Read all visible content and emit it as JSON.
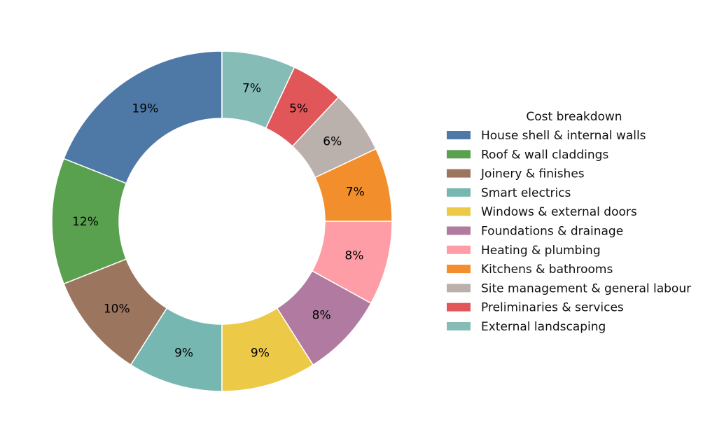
{
  "chart_data": {
    "type": "pie",
    "variant": "donut",
    "start_angle_deg": 90,
    "direction": "counterclockwise",
    "legend_title": "Cost breakdown",
    "legend_placement": "right",
    "categories": [
      "House shell & internal walls",
      "Roof & wall claddings",
      "Joinery & finishes",
      "Smart electrics",
      "Windows & external doors",
      "Foundations & drainage",
      "Heating & plumbing",
      "Kitchens & bathrooms",
      "Site management & general labour",
      "Preliminaries & services",
      "External landscaping"
    ],
    "values": [
      19,
      12,
      10,
      9,
      9,
      8,
      8,
      7,
      6,
      5,
      7
    ],
    "labels": [
      "19%",
      "12%",
      "10%",
      "9%",
      "9%",
      "8%",
      "8%",
      "7%",
      "6%",
      "5%",
      "7%"
    ],
    "colors": [
      "#4e79a7",
      "#59a14f",
      "#9c755f",
      "#76b7b2",
      "#edc948",
      "#b07aa1",
      "#ff9da7",
      "#f28e2b",
      "#bab0ac",
      "#e15759",
      "#86bcb6"
    ]
  }
}
